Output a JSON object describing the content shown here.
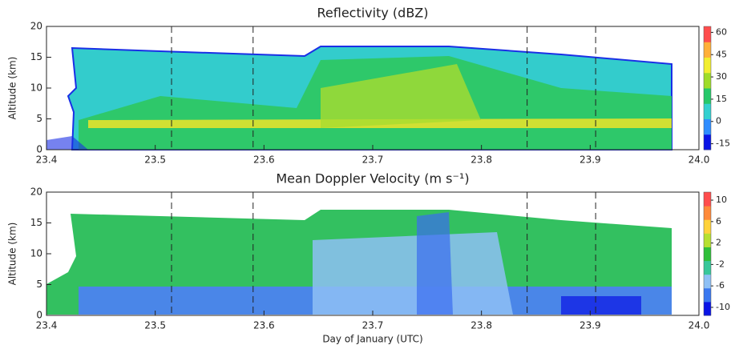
{
  "chart_data": [
    {
      "type": "heatmap",
      "title": "Reflectivity (dBZ)",
      "ylabel": "Altitude (km)",
      "xlim": [
        23.4,
        24.0
      ],
      "xticks": [
        23.4,
        23.5,
        23.6,
        23.7,
        23.8,
        23.9,
        {
          "value": 24,
          "label": "24.0"
        }
      ],
      "ylim": [
        0,
        20
      ],
      "yticks": [
        0,
        5,
        10,
        15,
        20
      ],
      "vlines": [
        23.515,
        23.59,
        23.842,
        23.905
      ],
      "colorbar": {
        "lim": [
          -19,
          64
        ],
        "ticks": [
          -15,
          0,
          15,
          30,
          45,
          60
        ],
        "colors": [
          "#0a14e6",
          "#2f8dff",
          "#33d0d0",
          "#26c86a",
          "#9fdc2a",
          "#f2ee30",
          "#ffb03a",
          "#ff4d4d"
        ]
      }
    },
    {
      "type": "heatmap",
      "title": "Mean Doppler Velocity (m s⁻¹)",
      "xlabel": "Day of January (UTC)",
      "ylabel": "Altitude (km)",
      "xlim": [
        23.4,
        24.0
      ],
      "xticks": [
        23.4,
        23.5,
        23.6,
        23.7,
        23.8,
        23.9,
        {
          "value": 24,
          "label": "24.0"
        }
      ],
      "ylim": [
        0,
        20
      ],
      "yticks": [
        0,
        5,
        10,
        15,
        20
      ],
      "vlines": [
        23.515,
        23.59,
        23.842,
        23.905
      ],
      "colorbar": {
        "lim": [
          -11.5,
          11.5
        ],
        "ticks": [
          -10,
          -6,
          -2,
          2,
          6,
          10
        ],
        "colors": [
          "#0a14e6",
          "#3a78f0",
          "#8ec0f5",
          "#37c79a",
          "#2fbf3a",
          "#b6e030",
          "#ffd23a",
          "#ff8a3a",
          "#ff4d4d"
        ]
      }
    }
  ]
}
